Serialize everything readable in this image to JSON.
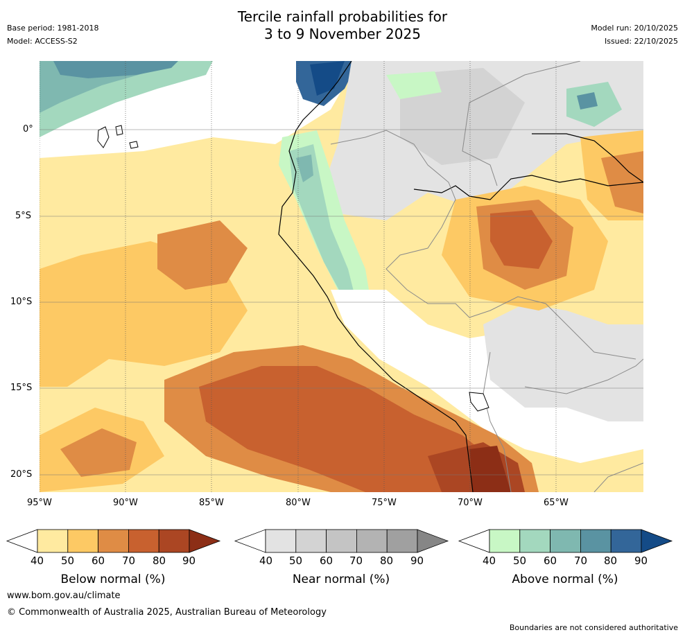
{
  "header": {
    "title_line1": "Tercile rainfall probabilities for",
    "title_line2": "3 to 9 November 2025",
    "base_period": "Base period: 1981-2018",
    "model": "Model: ACCESS-S2",
    "model_run": "Model run: 20/10/2025",
    "issued": "Issued: 22/10/2025"
  },
  "map": {
    "x_ticks": [
      "95°W",
      "90°W",
      "85°W",
      "80°W",
      "75°W",
      "70°W",
      "65°W"
    ],
    "y_ticks": [
      "0°",
      "5°S",
      "10°S",
      "15°S",
      "20°S"
    ],
    "colors": {
      "ocean_bg": "#ffeaa0",
      "coast": "#000000",
      "border": "#8a8a8a"
    }
  },
  "legend": {
    "below": {
      "label": "Below normal (%)",
      "ticks": [
        "40",
        "50",
        "60",
        "70",
        "80",
        "90"
      ],
      "colors": [
        "#ffeaa0",
        "#fdc964",
        "#df8c45",
        "#c8612f",
        "#ab4623",
        "#8c2e16"
      ]
    },
    "near": {
      "label": "Near normal (%)",
      "ticks": [
        "40",
        "50",
        "60",
        "70",
        "80",
        "90"
      ],
      "colors": [
        "#e3e3e3",
        "#d3d3d3",
        "#c4c4c4",
        "#b3b3b3",
        "#a0a0a0",
        "#868686"
      ]
    },
    "above": {
      "label": "Above normal (%)",
      "ticks": [
        "40",
        "50",
        "60",
        "70",
        "80",
        "90"
      ],
      "colors": [
        "#c8f7c5",
        "#a3d8be",
        "#7fb8b0",
        "#5a93a2",
        "#336699",
        "#144b87"
      ]
    }
  },
  "footer": {
    "website": "www.bom.gov.au/climate",
    "copyright": "© Commonwealth of Australia 2025, Australian Bureau of Meteorology",
    "disclaimer": "Boundaries are not considered authoritative"
  }
}
